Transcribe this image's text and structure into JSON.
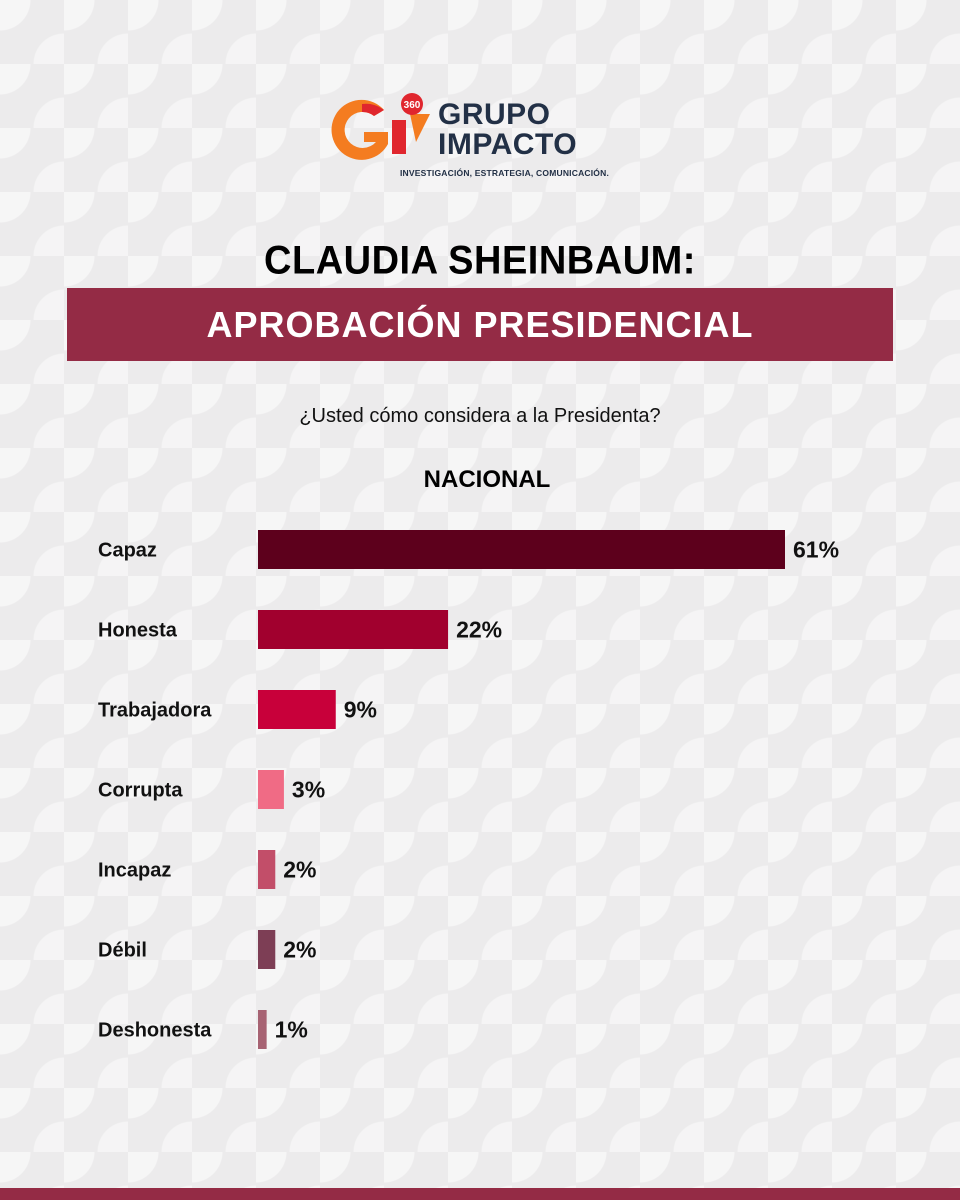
{
  "logo": {
    "badge": "360",
    "line1": "GRUPO",
    "line2": "IMPACTO",
    "tagline": "INVESTIGACIÓN, ESTRATEGIA, COMUNICACIÓN.",
    "colors": {
      "orange": "#f47c20",
      "red": "#e0262e",
      "navy": "#223046"
    }
  },
  "header": {
    "title": "CLAUDIA SHEINBAUM:",
    "banner": "APROBACIÓN PRESIDENCIAL",
    "banner_color": "#942b45"
  },
  "question": "¿Usted cómo considera a la Presidenta?",
  "section_label": "NACIONAL",
  "chart_data": {
    "type": "bar",
    "orientation": "horizontal",
    "categories": [
      "Capaz",
      "Honesta",
      "Trabajadora",
      "Corrupta",
      "Incapaz",
      "Débil",
      "Deshonesta"
    ],
    "values": [
      61,
      22,
      9,
      3,
      2,
      2,
      1
    ],
    "value_labels": [
      "61%",
      "22%",
      "9%",
      "3%",
      "2%",
      "2%",
      "1%"
    ],
    "colors": [
      "#5d001c",
      "#a1002e",
      "#c8003a",
      "#f06b85",
      "#c24e69",
      "#7d3e55",
      "#a76373"
    ],
    "xlim": [
      0,
      61
    ],
    "grid": false,
    "legend": "none"
  }
}
